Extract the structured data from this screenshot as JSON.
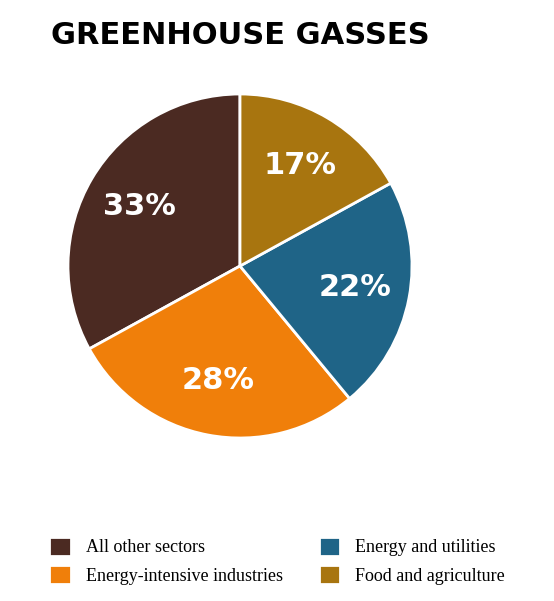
{
  "chart_data": {
    "type": "pie",
    "title": "GREENHOUSE GASSES",
    "categories": [
      "All other sectors",
      "Energy-intensive industries",
      "Energy and utilities",
      "Food and agriculture"
    ],
    "values": [
      33,
      28,
      22,
      17
    ],
    "value_labels": [
      "33%",
      "28%",
      "22%",
      "17%"
    ],
    "colors": [
      "#4b2a22",
      "#f07f0a",
      "#1f6487",
      "#a8750f"
    ],
    "data_labels": true,
    "legend": "lower center"
  }
}
